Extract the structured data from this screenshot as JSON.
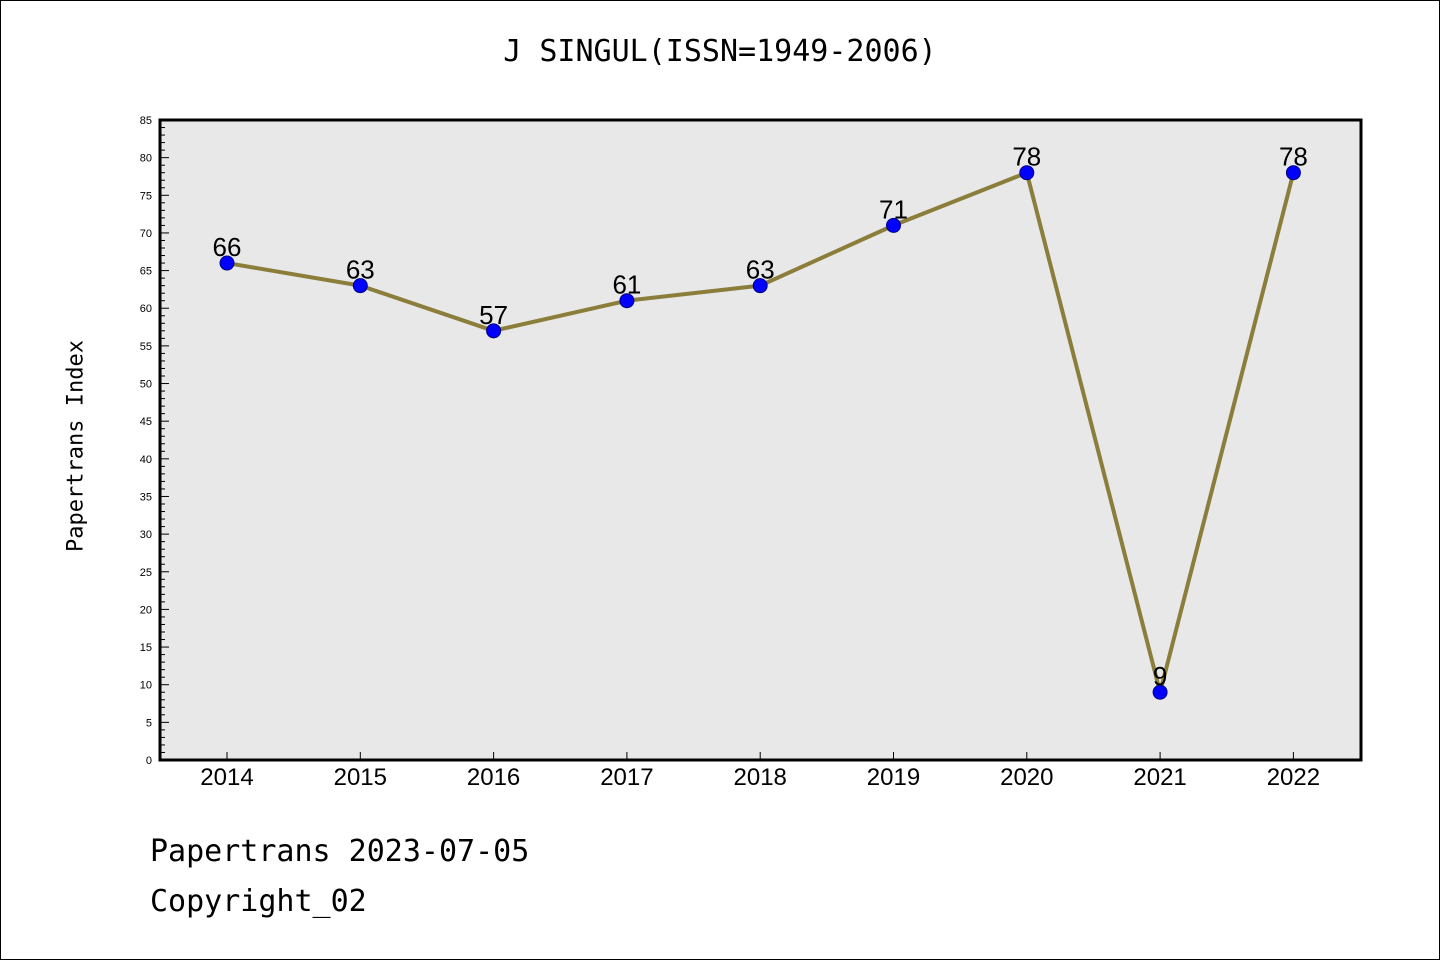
{
  "chart_data": {
    "type": "line",
    "title": "J SINGUL(ISSN=1949-2006)",
    "xlabel": "",
    "ylabel": "Papertrans Index",
    "categories": [
      "2014",
      "2015",
      "2016",
      "2017",
      "2018",
      "2019",
      "2020",
      "2021",
      "2022"
    ],
    "series": [
      {
        "values": [
          66,
          63,
          57,
          61,
          63,
          71,
          78,
          9,
          78
        ]
      }
    ],
    "data_labels": [
      "66",
      "63",
      "57",
      "61",
      "63",
      "71",
      "78",
      "9",
      "78"
    ],
    "ylim": [
      0,
      85
    ],
    "yticks": [
      0,
      5,
      10,
      15,
      20,
      25,
      30,
      35,
      40,
      45,
      50,
      55,
      60,
      65,
      70,
      75,
      80,
      85
    ],
    "grid": false,
    "legend": "none",
    "colors": {
      "line": "#8B7D3A",
      "marker": "#0000FF",
      "plot_background": "#E8E8E8"
    }
  },
  "footer": {
    "date_text": "Papertrans 2023-07-05",
    "copyright_text": "Copyright_02"
  }
}
